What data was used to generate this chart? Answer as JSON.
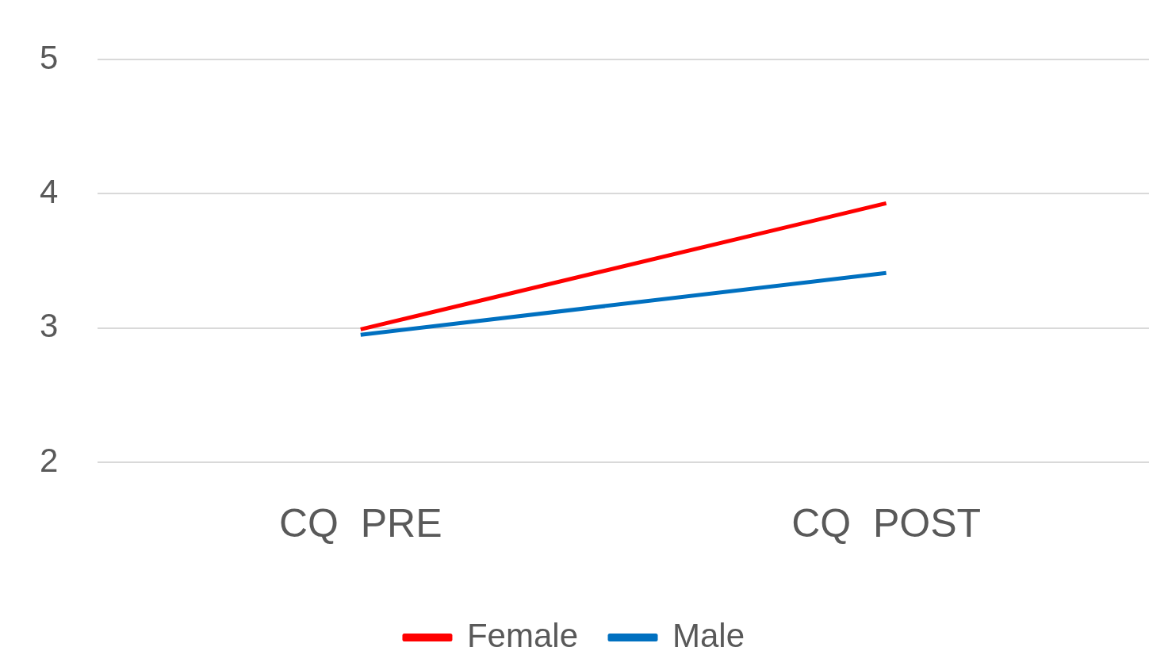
{
  "chart_data": {
    "type": "line",
    "categories": [
      "CQ  PRE",
      "CQ  POST"
    ],
    "series": [
      {
        "name": "Female",
        "color": "#ff0000",
        "values": [
          2.99,
          3.93
        ]
      },
      {
        "name": "Male",
        "color": "#0070c0",
        "values": [
          2.95,
          3.41
        ]
      }
    ],
    "ylim": [
      2,
      5
    ],
    "yticks": [
      2,
      3,
      4,
      5
    ],
    "grid": "y",
    "legend": "bottom",
    "marker": "none",
    "line_style": "solid"
  }
}
